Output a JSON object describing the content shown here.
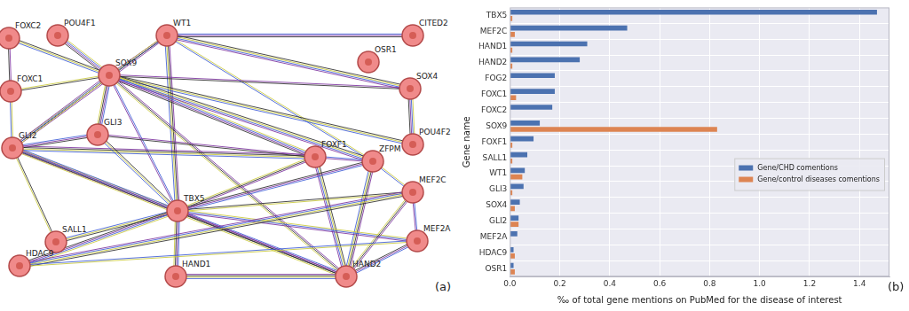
{
  "diagram": {
    "annotation": "(a)",
    "nodes": [
      {
        "label": "FOXC2"
      },
      {
        "label": "POU4F1"
      },
      {
        "label": "WT1"
      },
      {
        "label": "CITED2"
      },
      {
        "label": "OSR1"
      },
      {
        "label": "FOXC1"
      },
      {
        "label": "SOX9"
      },
      {
        "label": "SOX4"
      },
      {
        "label": "GLI2"
      },
      {
        "label": "GLI3"
      },
      {
        "label": "FOXF1"
      },
      {
        "label": "ZFPM"
      },
      {
        "label": "POU4F2"
      },
      {
        "label": "MEF2C"
      },
      {
        "label": "TBX5"
      },
      {
        "label": "SALL1"
      },
      {
        "label": "MEF2A"
      },
      {
        "label": "HDAC9"
      },
      {
        "label": "HAND1"
      },
      {
        "label": "HAND2"
      }
    ],
    "edges": [
      [
        "FOXC2",
        "FOXC1"
      ],
      [
        "FOXC2",
        "SOX9"
      ],
      [
        "POU4F1",
        "SOX9"
      ],
      [
        "WT1",
        "SOX9"
      ],
      [
        "WT1",
        "GLI2"
      ],
      [
        "WT1",
        "SOX4"
      ],
      [
        "WT1",
        "ZFPM"
      ],
      [
        "WT1",
        "CITED2"
      ],
      [
        "WT1",
        "TBX5"
      ],
      [
        "SOX9",
        "FOXC1"
      ],
      [
        "SOX9",
        "GLI2"
      ],
      [
        "SOX9",
        "GLI3"
      ],
      [
        "SOX9",
        "SOX4"
      ],
      [
        "SOX9",
        "POU4F2"
      ],
      [
        "SOX9",
        "FOXF1"
      ],
      [
        "SOX9",
        "TBX5"
      ],
      [
        "SOX9",
        "HAND2"
      ],
      [
        "SOX9",
        "ZFPM"
      ],
      [
        "FOXC1",
        "GLI2"
      ],
      [
        "GLI2",
        "GLI3"
      ],
      [
        "GLI2",
        "FOXF1"
      ],
      [
        "GLI2",
        "SALL1"
      ],
      [
        "GLI2",
        "TBX5"
      ],
      [
        "GLI2",
        "HAND2"
      ],
      [
        "GLI3",
        "FOXF1"
      ],
      [
        "GLI3",
        "TBX5"
      ],
      [
        "SOX4",
        "POU4F2"
      ],
      [
        "FOXF1",
        "ZFPM"
      ],
      [
        "FOXF1",
        "TBX5"
      ],
      [
        "FOXF1",
        "HAND2"
      ],
      [
        "ZFPM",
        "MEF2C"
      ],
      [
        "ZFPM",
        "TBX5"
      ],
      [
        "ZFPM",
        "HAND2"
      ],
      [
        "TBX5",
        "MEF2C"
      ],
      [
        "TBX5",
        "MEF2A"
      ],
      [
        "TBX5",
        "HAND1"
      ],
      [
        "TBX5",
        "HAND2"
      ],
      [
        "TBX5",
        "SALL1"
      ],
      [
        "TBX5",
        "HDAC9"
      ],
      [
        "MEF2C",
        "MEF2A"
      ],
      [
        "MEF2C",
        "HAND2"
      ],
      [
        "MEF2C",
        "HDAC9"
      ],
      [
        "MEF2A",
        "HDAC9"
      ],
      [
        "MEF2A",
        "HAND2"
      ],
      [
        "HAND1",
        "HAND2"
      ]
    ]
  },
  "chart_data": {
    "type": "bar",
    "orientation": "horizontal",
    "annotation": "(b)",
    "x_label": "‰ of total gene mentions on PubMed for the disease of interest",
    "y_label": "Gene name",
    "categories": [
      "TBX5",
      "MEF2C",
      "HAND1",
      "HAND2",
      "FOG2",
      "FOXC1",
      "FOXC2",
      "SOX9",
      "FOXF1",
      "SALL1",
      "WT1",
      "GLI3",
      "SOX4",
      "GLI2",
      "MEF2A",
      "HDAC9",
      "OSR1"
    ],
    "series": [
      {
        "name": "Gene/CHD comentions",
        "color": "#4c72b0",
        "values": [
          1.47,
          0.47,
          0.31,
          0.28,
          0.18,
          0.18,
          0.17,
          0.12,
          0.095,
          0.07,
          0.06,
          0.055,
          0.04,
          0.035,
          0.03,
          0.015,
          0.015
        ]
      },
      {
        "name": "Gene/control diseases comentions",
        "color": "#dd8452",
        "values": [
          0.01,
          0.02,
          0.01,
          0.01,
          0.0,
          0.025,
          0.0,
          0.83,
          0.01,
          0.01,
          0.05,
          0.01,
          0.02,
          0.035,
          0.0,
          0.02,
          0.02
        ]
      }
    ],
    "xlim": [
      0,
      1.52
    ],
    "xticks": [
      {
        "value": 0,
        "label": "0.0"
      },
      {
        "value": 0.2,
        "label": "0.2"
      },
      {
        "value": 0.4,
        "label": "0.4"
      },
      {
        "value": 0.6,
        "label": "0.6"
      },
      {
        "value": 0.8,
        "label": "0.8"
      },
      {
        "value": 1.0,
        "label": "1.0"
      },
      {
        "value": 1.2,
        "label": "1.2"
      },
      {
        "value": 1.4,
        "label": "1.4"
      }
    ],
    "grid": true,
    "legend": "center right"
  }
}
